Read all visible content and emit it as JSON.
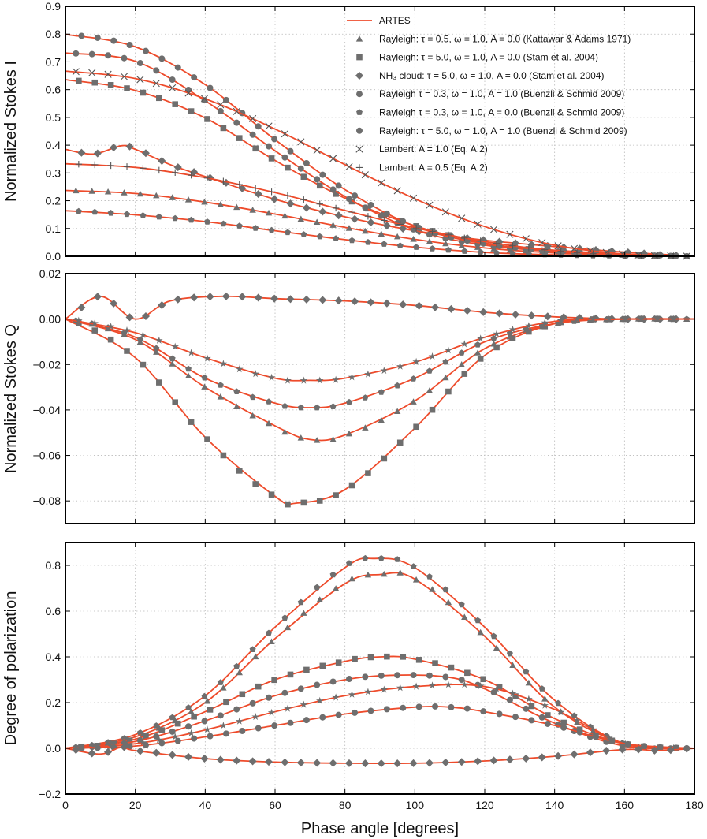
{
  "chart_data": [
    {
      "type": "line",
      "panel": "top",
      "title": "",
      "xlabel": "",
      "ylabel": "Normalized Stokes I",
      "xlim": [
        0,
        180
      ],
      "ylim": [
        0.0,
        0.9
      ],
      "grid": true,
      "xticks": [
        "",
        "",
        "",
        "",
        "",
        "",
        "",
        "",
        "",
        ""
      ],
      "yticks": [
        "0.0",
        "0.1",
        "0.2",
        "0.3",
        "0.4",
        "0.5",
        "0.6",
        "0.7",
        "0.8",
        "0.9"
      ],
      "legend": {
        "placement": "top-right",
        "entries": [
          {
            "label": "ARTES",
            "marker": "line",
            "tex": false
          },
          {
            "label": "Rayleigh: τ = 0.5, ω = 1.0, A = 0.0 (Kattawar & Adams 1971)",
            "marker": "triangle"
          },
          {
            "label": "Rayleigh: τ = 5.0, ω = 1.0, A = 0.0 (Stam et al. 2004)",
            "marker": "square"
          },
          {
            "label": "NH₃ cloud: τ = 5.0, ω = 1.0, A = 0.0 (Stam et al. 2004)",
            "marker": "diamond"
          },
          {
            "label": "Rayleigh τ = 0.3, ω = 1.0, A = 1.0 (Buenzli & Schmid 2009)",
            "marker": "circle"
          },
          {
            "label": "Rayleigh τ = 0.3, ω = 1.0, A = 0.0 (Buenzli & Schmid 2009)",
            "marker": "pentagon"
          },
          {
            "label": "Rayleigh: τ = 5.0, ω = 1.0, A = 1.0 (Buenzli & Schmid 2009)",
            "marker": "circle"
          },
          {
            "label": "Lambert: A = 1.0 (Eq. A.2)",
            "marker": "x"
          },
          {
            "label": "Lambert: A = 0.5 (Eq. A.2)",
            "marker": "plus"
          }
        ]
      },
      "series": [
        {
          "name": "Rayleigh τ=0.5 A=0.0",
          "marker": "triangle",
          "x": [
            0,
            20,
            40,
            60,
            80,
            100,
            120,
            140,
            160,
            180
          ],
          "values": [
            0.237,
            0.226,
            0.195,
            0.152,
            0.104,
            0.061,
            0.03,
            0.012,
            0.004,
            0.0
          ]
        },
        {
          "name": "Rayleigh τ=5.0 A=0.0",
          "marker": "square",
          "x": [
            0,
            20,
            40,
            60,
            80,
            100,
            120,
            140,
            160,
            180
          ],
          "values": [
            0.636,
            0.597,
            0.498,
            0.345,
            0.209,
            0.11,
            0.048,
            0.017,
            0.004,
            0.0
          ]
        },
        {
          "name": "NH3 cloud τ=5.0 A=0.0",
          "marker": "diamond",
          "x": [
            0,
            8,
            16,
            20,
            30,
            40,
            60,
            80,
            100,
            120,
            140,
            160,
            180
          ],
          "values": [
            0.385,
            0.368,
            0.398,
            0.385,
            0.33,
            0.287,
            0.205,
            0.142,
            0.092,
            0.058,
            0.035,
            0.015,
            0.0
          ]
        },
        {
          "name": "Rayleigh τ=0.3 A=1.0",
          "marker": "circle",
          "x": [
            0,
            20,
            40,
            60,
            80,
            100,
            120,
            140,
            160,
            180
          ],
          "values": [
            0.732,
            0.702,
            0.56,
            0.38,
            0.215,
            0.095,
            0.04,
            0.018,
            0.006,
            0.0
          ]
        },
        {
          "name": "Rayleigh τ=0.3 A=0.0",
          "marker": "pentagon",
          "x": [
            0,
            20,
            40,
            60,
            80,
            100,
            120,
            140,
            160,
            180
          ],
          "values": [
            0.164,
            0.149,
            0.125,
            0.092,
            0.06,
            0.033,
            0.014,
            0.005,
            0.001,
            0.0
          ]
        },
        {
          "name": "Rayleigh τ=5.0 A=1.0",
          "marker": "circle",
          "x": [
            0,
            20,
            40,
            60,
            80,
            100,
            120,
            140,
            160,
            180
          ],
          "values": [
            0.799,
            0.754,
            0.618,
            0.42,
            0.24,
            0.108,
            0.045,
            0.022,
            0.008,
            0.0
          ]
        },
        {
          "name": "Lambert A=1.0",
          "marker": "x",
          "x": [
            0,
            20,
            40,
            60,
            80,
            100,
            120,
            140,
            160,
            180
          ],
          "values": [
            0.667,
            0.64,
            0.567,
            0.458,
            0.33,
            0.207,
            0.107,
            0.04,
            0.008,
            0.0
          ]
        },
        {
          "name": "Lambert A=0.5",
          "marker": "plus",
          "x": [
            0,
            20,
            40,
            60,
            80,
            100,
            120,
            140,
            160,
            180
          ],
          "values": [
            0.333,
            0.32,
            0.283,
            0.229,
            0.165,
            0.103,
            0.053,
            0.02,
            0.004,
            0.0
          ]
        }
      ]
    },
    {
      "type": "line",
      "panel": "middle",
      "title": "",
      "xlabel": "",
      "ylabel": "Normalized Stokes Q",
      "xlim": [
        0,
        180
      ],
      "ylim": [
        -0.09,
        0.02
      ],
      "grid": true,
      "xticks": [
        "",
        "",
        "",
        "",
        "",
        "",
        "",
        "",
        "",
        ""
      ],
      "yticks": [
        "−0.08",
        "−0.06",
        "−0.04",
        "−0.02",
        "0.00",
        "0.02"
      ],
      "series": [
        {
          "name": "Rayleigh τ=0.5 A=0.0",
          "marker": "triangle",
          "x": [
            0,
            20,
            40,
            60,
            70,
            80,
            100,
            120,
            140,
            160,
            180
          ],
          "values": [
            0.0,
            -0.009,
            -0.03,
            -0.047,
            -0.053,
            -0.051,
            -0.036,
            -0.013,
            -0.002,
            0.0,
            0.0
          ]
        },
        {
          "name": "Rayleigh τ=5.0 A=0.0",
          "marker": "square",
          "x": [
            0,
            20,
            40,
            60,
            66,
            80,
            100,
            120,
            140,
            160,
            180
          ],
          "values": [
            0.0,
            -0.017,
            -0.052,
            -0.078,
            -0.081,
            -0.075,
            -0.048,
            -0.016,
            -0.002,
            0.0,
            0.0
          ]
        },
        {
          "name": "NH3 cloud τ=5.0 A=0.0",
          "marker": "diamond",
          "x": [
            0,
            10,
            20,
            30,
            45,
            60,
            80,
            100,
            120,
            140,
            160,
            180
          ],
          "values": [
            0.0,
            0.01,
            0.0,
            0.008,
            0.01,
            0.009,
            0.008,
            0.006,
            0.003,
            0.001,
            0.0,
            0.0
          ]
        },
        {
          "name": "Rayleigh τ=0.3 A=0.0",
          "marker": "pentagon",
          "x": [
            0,
            20,
            40,
            60,
            70,
            80,
            100,
            120,
            140,
            160,
            180
          ],
          "values": [
            0.0,
            -0.008,
            -0.026,
            -0.037,
            -0.039,
            -0.037,
            -0.026,
            -0.01,
            -0.002,
            0.0,
            0.0
          ]
        },
        {
          "name": "Rayleigh τ=5.0 A=1.0",
          "marker": "star",
          "x": [
            0,
            20,
            40,
            60,
            70,
            80,
            100,
            120,
            140,
            160,
            180
          ],
          "values": [
            0.0,
            -0.006,
            -0.017,
            -0.026,
            -0.027,
            -0.026,
            -0.019,
            -0.008,
            -0.001,
            0.0,
            0.0
          ]
        }
      ]
    },
    {
      "type": "line",
      "panel": "bottom",
      "title": "",
      "xlabel": "Phase angle [degrees]",
      "ylabel": "Degree of polarization",
      "xlim": [
        0,
        180
      ],
      "ylim": [
        -0.2,
        0.9
      ],
      "grid": true,
      "xticks": [
        "0",
        "20",
        "40",
        "60",
        "80",
        "100",
        "120",
        "140",
        "160",
        "180"
      ],
      "yticks": [
        "−0.2",
        "0.0",
        "0.2",
        "0.4",
        "0.6",
        "0.8"
      ],
      "series": [
        {
          "name": "Rayleigh τ=0.3 A=0.0",
          "marker": "pentagon",
          "x": [
            0,
            20,
            40,
            60,
            80,
            88,
            100,
            120,
            140,
            160,
            180
          ],
          "values": [
            0.0,
            0.06,
            0.23,
            0.53,
            0.79,
            0.83,
            0.79,
            0.53,
            0.21,
            0.02,
            0.0
          ]
        },
        {
          "name": "Rayleigh τ=0.5 A=0.0",
          "marker": "triangle",
          "x": [
            0,
            20,
            40,
            60,
            80,
            90,
            100,
            120,
            140,
            160,
            180
          ],
          "values": [
            0.0,
            0.05,
            0.2,
            0.48,
            0.72,
            0.76,
            0.74,
            0.49,
            0.18,
            0.02,
            0.0
          ]
        },
        {
          "name": "Rayleigh τ=5.0 A=0.0",
          "marker": "square",
          "x": [
            0,
            20,
            40,
            60,
            80,
            90,
            100,
            120,
            140,
            160,
            180
          ],
          "values": [
            0.0,
            0.04,
            0.16,
            0.3,
            0.38,
            0.4,
            0.39,
            0.3,
            0.13,
            0.02,
            0.0
          ]
        },
        {
          "name": "Rayleigh τ=0.3 A=1.0",
          "marker": "circle",
          "x": [
            0,
            20,
            40,
            60,
            80,
            95,
            110,
            120,
            140,
            160,
            180
          ],
          "values": [
            0.0,
            0.03,
            0.12,
            0.23,
            0.3,
            0.32,
            0.31,
            0.26,
            0.11,
            0.01,
            0.0
          ]
        },
        {
          "name": "Rayleigh τ=5.0 A=1.0 (star)",
          "marker": "star",
          "x": [
            0,
            20,
            40,
            60,
            80,
            100,
            120,
            140,
            160,
            180
          ],
          "values": [
            0.0,
            0.02,
            0.08,
            0.16,
            0.23,
            0.27,
            0.27,
            0.17,
            0.02,
            0.0
          ]
        },
        {
          "name": "Rayleigh τ=5.0 A=1.0",
          "marker": "circle",
          "x": [
            0,
            20,
            40,
            60,
            80,
            100,
            110,
            120,
            140,
            160,
            180
          ],
          "values": [
            0.0,
            0.01,
            0.05,
            0.1,
            0.15,
            0.18,
            0.18,
            0.16,
            0.1,
            0.02,
            0.0
          ]
        },
        {
          "name": "NH3 cloud τ=5.0 A=0.0",
          "marker": "diamond",
          "x": [
            0,
            10,
            16,
            20,
            40,
            60,
            80,
            100,
            120,
            140,
            160,
            170,
            180
          ],
          "values": [
            0.0,
            -0.025,
            0.005,
            -0.01,
            -0.045,
            -0.06,
            -0.065,
            -0.065,
            -0.055,
            -0.035,
            -0.005,
            -0.01,
            0.0
          ]
        }
      ]
    }
  ]
}
